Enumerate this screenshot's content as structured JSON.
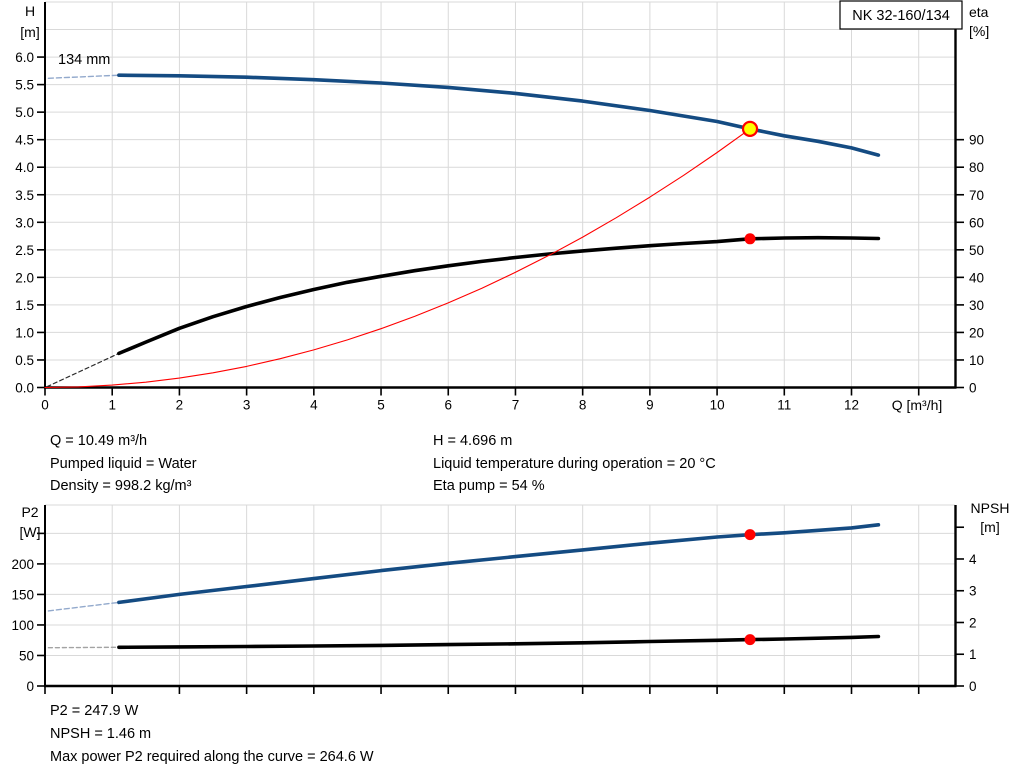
{
  "colors": {
    "curve_blue": "#144b82",
    "curve_black": "#000000",
    "curve_red": "#ff0000",
    "dash_blue": "#92a9cc",
    "dash_black": "#2b2b2b",
    "dash_gray": "#a3a3a3",
    "grid": "#d9d9d9",
    "axis": "#000000",
    "marker_red": "#ff0000",
    "marker_yellow": "#ffff00",
    "box_bg": "#ffffff",
    "box_border": "#000000"
  },
  "title_box": {
    "label": "NK 32-160/134"
  },
  "info_mid": {
    "col1": [
      "Q = 10.49 m³/h",
      "Pumped liquid = Water",
      "Density = 998.2 kg/m³"
    ],
    "col2": [
      "H = 4.696 m",
      "Liquid temperature during operation = 20 °C",
      "Eta pump = 54 %"
    ]
  },
  "info_bottom": [
    "P2 = 247.9 W",
    "NPSH = 1.46 m",
    "Max power P2 required along the curve = 264.6 W"
  ],
  "chart_data": [
    {
      "type": "line",
      "name": "head-efficiency-chart",
      "px": {
        "x0": 45,
        "x1": 955,
        "y0": 387.5,
        "y1": 2
      },
      "x_axis": {
        "label": "Q [m³/h]",
        "label_x": 917,
        "label_y": 410,
        "min": 0,
        "max": 13.54,
        "grid": [
          1,
          2,
          3,
          4,
          5,
          6,
          7,
          8,
          9,
          10,
          11,
          12,
          13
        ],
        "ticks_labeled": [
          [
            "0",
            0
          ],
          [
            "1",
            1
          ],
          [
            "2",
            2
          ],
          [
            "3",
            3
          ],
          [
            "4",
            4
          ],
          [
            "5",
            5
          ],
          [
            "6",
            6
          ],
          [
            "7",
            7
          ],
          [
            "8",
            8
          ],
          [
            "9",
            9
          ],
          [
            "10",
            10
          ],
          [
            "11",
            11
          ],
          [
            "12",
            12
          ]
        ],
        "ticks_unlabeled": [
          13
        ]
      },
      "left_axis": {
        "title": [
          "H",
          "[m]"
        ],
        "title_x": 30,
        "title_baselines": [
          16,
          37
        ],
        "title_anchor": "middle",
        "min": 0,
        "max": 7.0,
        "grid": [
          0.5,
          1,
          1.5,
          2,
          2.5,
          3,
          3.5,
          4,
          4.5,
          5,
          5.5,
          6,
          6.5,
          7
        ],
        "ticks_labeled": [
          [
            "0.0",
            0
          ],
          [
            "0.5",
            0.5
          ],
          [
            "1.0",
            1
          ],
          [
            "1.5",
            1.5
          ],
          [
            "2.0",
            2
          ],
          [
            "2.5",
            2.5
          ],
          [
            "3.0",
            3
          ],
          [
            "3.5",
            3.5
          ],
          [
            "4.0",
            4
          ],
          [
            "4.5",
            4.5
          ],
          [
            "5.0",
            5
          ],
          [
            "5.5",
            5.5
          ],
          [
            "6.0",
            6
          ]
        ],
        "ticks_unlabeled": []
      },
      "right_axis": {
        "title": [
          "eta",
          "[%]"
        ],
        "title_x": 969,
        "title_baselines": [
          17,
          36
        ],
        "title_anchor": "start",
        "min": 0,
        "max": 140,
        "ticks_labeled": [
          [
            "0",
            0
          ],
          [
            "10",
            10
          ],
          [
            "20",
            20
          ],
          [
            "30",
            30
          ],
          [
            "40",
            40
          ],
          [
            "50",
            50
          ],
          [
            "60",
            60
          ],
          [
            "70",
            70
          ],
          [
            "80",
            80
          ],
          [
            "90",
            90
          ]
        ],
        "ticks_unlabeled": []
      },
      "series": [
        {
          "name": "head-curve-lowflow-dashed",
          "axis": "left",
          "color_key": "dash_blue",
          "width": 1.4,
          "dash": "5 3",
          "points": [
            [
              0.05,
              5.615
            ],
            [
              1.1,
              5.67
            ]
          ]
        },
        {
          "name": "eta-curve-lowflow-dashed",
          "axis": "right",
          "color_key": "dash_black",
          "width": 1.2,
          "dash": "4 3",
          "points": [
            [
              0.03,
              0.3
            ],
            [
              1.1,
              12.4
            ]
          ]
        },
        {
          "name": "eta-curve",
          "axis": "right",
          "color_key": "curve_black",
          "width": 3.6,
          "points": [
            [
              1.1,
              12.4
            ],
            [
              1.5,
              16.5
            ],
            [
              2,
              21.5
            ],
            [
              2.5,
              25.7
            ],
            [
              3,
              29.4
            ],
            [
              3.5,
              32.7
            ],
            [
              4,
              35.6
            ],
            [
              4.5,
              38.2
            ],
            [
              5,
              40.4
            ],
            [
              5.5,
              42.4
            ],
            [
              6,
              44.2
            ],
            [
              6.5,
              45.8
            ],
            [
              7,
              47.2
            ],
            [
              7.5,
              48.5
            ],
            [
              8,
              49.6
            ],
            [
              8.5,
              50.6
            ],
            [
              9,
              51.5
            ],
            [
              9.5,
              52.3
            ],
            [
              10,
              53
            ],
            [
              10.49,
              54
            ],
            [
              11,
              54.3
            ],
            [
              11.5,
              54.4
            ],
            [
              12,
              54.3
            ],
            [
              12.4,
              54.1
            ]
          ]
        },
        {
          "name": "head-curve",
          "axis": "left",
          "color_key": "curve_blue",
          "width": 3.6,
          "points": [
            [
              1.1,
              5.67
            ],
            [
              2,
              5.66
            ],
            [
              3,
              5.635
            ],
            [
              4,
              5.59
            ],
            [
              5,
              5.53
            ],
            [
              6,
              5.45
            ],
            [
              7,
              5.34
            ],
            [
              8,
              5.2
            ],
            [
              9,
              5.03
            ],
            [
              10,
              4.83
            ],
            [
              10.49,
              4.696
            ],
            [
              11,
              4.57
            ],
            [
              11.5,
              4.47
            ],
            [
              12,
              4.35
            ],
            [
              12.4,
              4.22
            ]
          ]
        },
        {
          "name": "system-curve",
          "axis": "left",
          "color_key": "curve_red",
          "width": 1.1,
          "points": [
            [
              0,
              0
            ],
            [
              0.5,
              0.011
            ],
            [
              1,
              0.043
            ],
            [
              1.5,
              0.096
            ],
            [
              2,
              0.171
            ],
            [
              2.5,
              0.267
            ],
            [
              3,
              0.384
            ],
            [
              3.5,
              0.523
            ],
            [
              4,
              0.683
            ],
            [
              4.5,
              0.864
            ],
            [
              5,
              1.067
            ],
            [
              5.5,
              1.291
            ],
            [
              6,
              1.536
            ],
            [
              6.5,
              1.803
            ],
            [
              7,
              2.091
            ],
            [
              7.5,
              2.401
            ],
            [
              8,
              2.731
            ],
            [
              8.5,
              3.084
            ],
            [
              9,
              3.457
            ],
            [
              9.5,
              3.852
            ],
            [
              10,
              4.268
            ],
            [
              10.49,
              4.696
            ]
          ]
        }
      ],
      "markers": [
        {
          "name": "duty-point-head",
          "axis": "left",
          "q": 10.49,
          "v": 4.696,
          "r": 7,
          "fill_key": "marker_yellow",
          "stroke_key": "marker_red",
          "sw": 2.2
        },
        {
          "name": "duty-point-eta",
          "axis": "right",
          "q": 10.49,
          "v": 54,
          "r": 5.5,
          "fill_key": "marker_red"
        }
      ],
      "annotations": [
        {
          "name": "impeller-diameter-label",
          "text": "134 mm",
          "x": 58,
          "y": 64,
          "size": 14.5
        }
      ],
      "title_box": {
        "x": 840,
        "y": 1,
        "w": 122,
        "h": 28,
        "text_size": 14.5
      }
    },
    {
      "type": "line",
      "name": "power-npsh-chart",
      "px": {
        "x0": 45,
        "x1": 955,
        "y0": 686,
        "y1": 505
      },
      "x_axis": {
        "label": null,
        "min": 0,
        "max": 13.54,
        "grid": [
          1,
          2,
          3,
          4,
          5,
          6,
          7,
          8,
          9,
          10,
          11,
          12,
          13
        ],
        "ticks_labeled": [],
        "ticks_unlabeled": [
          0,
          1,
          2,
          3,
          4,
          5,
          6,
          7,
          8,
          9,
          10,
          11,
          12,
          13
        ]
      },
      "left_axis": {
        "title": [
          "P2",
          "[W]"
        ],
        "title_x": 30,
        "title_baselines": [
          517,
          537
        ],
        "title_anchor": "middle",
        "min": 0,
        "max": 296.5,
        "grid": [
          50,
          100,
          150,
          200,
          250,
          296.5
        ],
        "ticks_labeled": [
          [
            "0",
            0
          ],
          [
            "50",
            50
          ],
          [
            "100",
            100
          ],
          [
            "150",
            150
          ],
          [
            "200",
            200
          ]
        ],
        "ticks_unlabeled": [
          250
        ]
      },
      "right_axis": {
        "title": [
          "NPSH",
          "[m]"
        ],
        "title_x": 990,
        "title_baselines": [
          513,
          532
        ],
        "title_anchor": "middle",
        "min": 0,
        "max": 5.7,
        "ticks_labeled": [
          [
            "0",
            0
          ],
          [
            "1",
            1
          ],
          [
            "2",
            2
          ],
          [
            "3",
            3
          ],
          [
            "4",
            4
          ]
        ],
        "ticks_unlabeled": [
          5
        ]
      },
      "series": [
        {
          "name": "p2-curve-lowflow-dashed",
          "axis": "left",
          "color_key": "dash_blue",
          "width": 1.4,
          "dash": "5 3",
          "points": [
            [
              0.05,
              123
            ],
            [
              1.1,
              137
            ]
          ]
        },
        {
          "name": "npsh-curve-lowflow-dashed",
          "axis": "right",
          "color_key": "dash_gray",
          "width": 1.4,
          "dash": "4 3",
          "points": [
            [
              0.05,
              1.205
            ],
            [
              1.1,
              1.22
            ]
          ]
        },
        {
          "name": "npsh-curve",
          "axis": "right",
          "color_key": "curve_black",
          "width": 3.6,
          "points": [
            [
              1.1,
              1.22
            ],
            [
              2,
              1.23
            ],
            [
              3,
              1.245
            ],
            [
              4,
              1.26
            ],
            [
              5,
              1.28
            ],
            [
              6,
              1.305
            ],
            [
              7,
              1.33
            ],
            [
              8,
              1.36
            ],
            [
              9,
              1.4
            ],
            [
              10,
              1.44
            ],
            [
              10.49,
              1.46
            ],
            [
              11,
              1.48
            ],
            [
              12,
              1.53
            ],
            [
              12.4,
              1.56
            ]
          ]
        },
        {
          "name": "p2-curve",
          "axis": "left",
          "color_key": "curve_blue",
          "width": 3.6,
          "points": [
            [
              1.1,
              137
            ],
            [
              2,
              150
            ],
            [
              3,
              163
            ],
            [
              4,
              176
            ],
            [
              5,
              189
            ],
            [
              6,
              201
            ],
            [
              7,
              212
            ],
            [
              8,
              223
            ],
            [
              9,
              234
            ],
            [
              10,
              244
            ],
            [
              10.49,
              247.9
            ],
            [
              11,
              251
            ],
            [
              12,
              259
            ],
            [
              12.4,
              264
            ]
          ]
        }
      ],
      "markers": [
        {
          "name": "duty-point-p2",
          "axis": "left",
          "q": 10.49,
          "v": 247.9,
          "r": 5.5,
          "fill_key": "marker_red"
        },
        {
          "name": "duty-point-npsh",
          "axis": "right",
          "q": 10.49,
          "v": 1.46,
          "r": 5.5,
          "fill_key": "marker_red"
        }
      ],
      "annotations": []
    }
  ]
}
